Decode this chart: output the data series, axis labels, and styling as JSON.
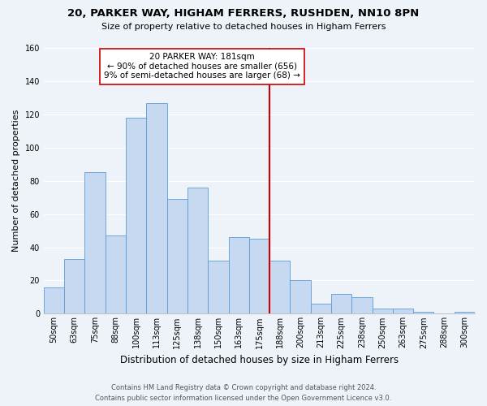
{
  "title": "20, PARKER WAY, HIGHAM FERRERS, RUSHDEN, NN10 8PN",
  "subtitle": "Size of property relative to detached houses in Higham Ferrers",
  "xlabel": "Distribution of detached houses by size in Higham Ferrers",
  "ylabel": "Number of detached properties",
  "bar_labels": [
    "50sqm",
    "63sqm",
    "75sqm",
    "88sqm",
    "100sqm",
    "113sqm",
    "125sqm",
    "138sqm",
    "150sqm",
    "163sqm",
    "175sqm",
    "188sqm",
    "200sqm",
    "213sqm",
    "225sqm",
    "238sqm",
    "250sqm",
    "263sqm",
    "275sqm",
    "288sqm",
    "300sqm"
  ],
  "bar_values": [
    16,
    33,
    85,
    47,
    118,
    127,
    69,
    76,
    32,
    46,
    45,
    32,
    20,
    6,
    12,
    10,
    3,
    3,
    1,
    0,
    1
  ],
  "bar_color": "#c6d9f0",
  "bar_edge_color": "#5b9bd5",
  "ylim": [
    0,
    160
  ],
  "yticks": [
    0,
    20,
    40,
    60,
    80,
    100,
    120,
    140,
    160
  ],
  "vline_x": 10.5,
  "vline_color": "#cc0000",
  "annotation_title": "20 PARKER WAY: 181sqm",
  "annotation_line1": "← 90% of detached houses are smaller (656)",
  "annotation_line2": "9% of semi-detached houses are larger (68) →",
  "annotation_box_color": "#ffffff",
  "annotation_box_edge": "#cc0000",
  "footer1": "Contains HM Land Registry data © Crown copyright and database right 2024.",
  "footer2": "Contains public sector information licensed under the Open Government Licence v3.0.",
  "background_color": "#eef2f9",
  "grid_color": "#ffffff",
  "title_fontsize": 9.5,
  "subtitle_fontsize": 8,
  "ylabel_fontsize": 8,
  "xlabel_fontsize": 8.5,
  "tick_fontsize": 7,
  "annotation_fontsize": 7.5,
  "footer_fontsize": 6
}
